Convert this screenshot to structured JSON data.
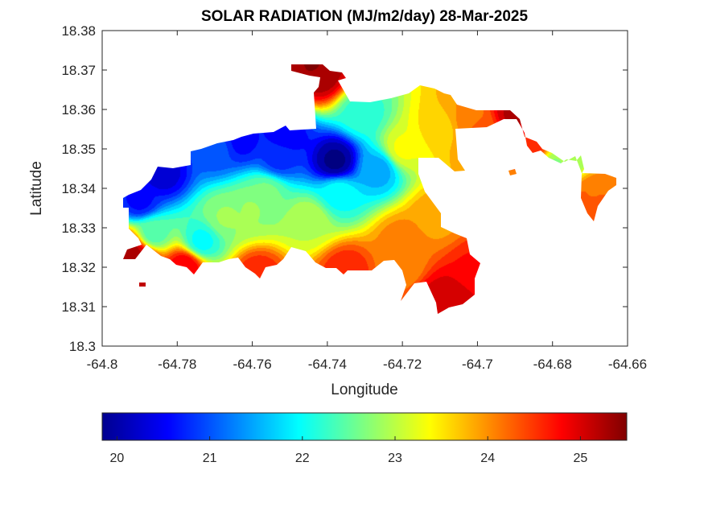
{
  "chart_data": {
    "type": "heatmap",
    "title": "SOLAR RADIATION (MJ/m2/day) 28-Mar-2025",
    "xlabel": "Longitude",
    "ylabel": "Latitude",
    "xlim": [
      -64.8,
      -64.66
    ],
    "ylim": [
      18.3,
      18.38
    ],
    "x_ticks": [
      -64.8,
      -64.78,
      -64.76,
      -64.74,
      -64.72,
      -64.7,
      -64.68,
      -64.66
    ],
    "x_tick_labels": [
      "-64.8",
      "-64.78",
      "-64.76",
      "-64.74",
      "-64.72",
      "-64.7",
      "-64.68",
      "-64.66"
    ],
    "y_ticks": [
      18.3,
      18.31,
      18.32,
      18.33,
      18.34,
      18.35,
      18.36,
      18.37,
      18.38
    ],
    "y_tick_labels": [
      "18.3",
      "18.31",
      "18.32",
      "18.33",
      "18.34",
      "18.35",
      "18.36",
      "18.37",
      "18.38"
    ],
    "colormap": "jet",
    "colorbar": {
      "orientation": "horizontal",
      "placement": "bottom",
      "range": [
        19.84,
        25.5
      ],
      "ticks": [
        20,
        21,
        22,
        23,
        24,
        25
      ],
      "tick_labels": [
        "20",
        "21",
        "22",
        "23",
        "24",
        "25"
      ]
    },
    "grid": false,
    "field_features": [
      {
        "lon": -64.738,
        "lat": 18.347,
        "value": 19.9,
        "note": "minimum"
      },
      {
        "lon": -64.79,
        "lat": 18.337,
        "value": 20.6
      },
      {
        "lon": -64.77,
        "lat": 18.35,
        "value": 21.0
      },
      {
        "lon": -64.753,
        "lat": 18.348,
        "value": 20.8
      },
      {
        "lon": -64.76,
        "lat": 18.335,
        "value": 22.8
      },
      {
        "lon": -64.745,
        "lat": 18.332,
        "value": 23.0
      },
      {
        "lon": -64.72,
        "lat": 18.35,
        "value": 23.3
      },
      {
        "lon": -64.71,
        "lat": 18.355,
        "value": 23.6
      },
      {
        "lon": -64.72,
        "lat": 18.32,
        "value": 24.0
      },
      {
        "lon": -64.7,
        "lat": 18.355,
        "value": 24.3
      },
      {
        "lon": -64.68,
        "lat": 18.345,
        "value": 22.7
      },
      {
        "lon": -64.672,
        "lat": 18.335,
        "value": 24.4
      },
      {
        "lon": -64.742,
        "lat": 18.369,
        "value": 25.3
      },
      {
        "lon": -64.79,
        "lat": 18.322,
        "value": 25.2
      },
      {
        "lon": -64.711,
        "lat": 18.312,
        "value": 25.0
      }
    ]
  }
}
